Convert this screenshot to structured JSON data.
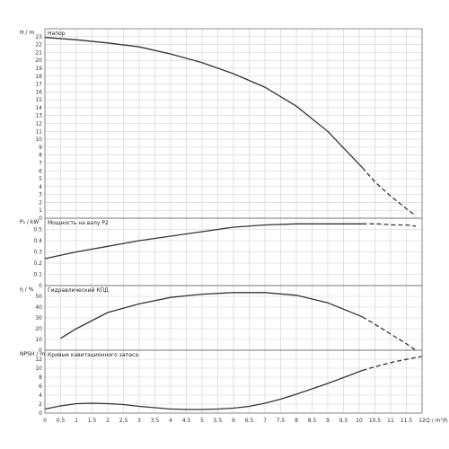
{
  "chart_data": {
    "type": "line",
    "x_axis": {
      "label": "Q / m³/h",
      "ticks": [
        "0",
        "0.5",
        "1",
        "1.5",
        "2",
        "2.5",
        "3",
        "3.5",
        "4",
        "4.5",
        "5",
        "5.5",
        "6",
        "6.5",
        "7",
        "7.5",
        "8",
        "8.5",
        "9",
        "9.5",
        "10",
        "10.5",
        "11",
        "11.5",
        "12"
      ],
      "xlim": [
        0,
        12
      ]
    },
    "grid": true,
    "colors": {
      "curve": "#333333",
      "grid": "#cfcfcf",
      "frame": "#6f6f6f"
    },
    "panels": [
      {
        "id": "head",
        "axis_label": "H / m",
        "title": "Напор",
        "ylim": [
          0,
          24
        ],
        "yticks": [
          "0",
          "1",
          "2",
          "3",
          "4",
          "5",
          "6",
          "7",
          "8",
          "9",
          "10",
          "11",
          "12",
          "13",
          "14",
          "15",
          "16",
          "17",
          "18",
          "19",
          "20",
          "21",
          "22",
          "23"
        ],
        "series_solid": {
          "x": [
            0,
            1,
            2,
            3,
            4,
            5,
            6,
            7,
            8,
            9,
            10.1
          ],
          "y": [
            22.9,
            22.6,
            22.2,
            21.7,
            20.8,
            19.7,
            18.3,
            16.6,
            14.2,
            11.0,
            6.4
          ]
        },
        "series_dashed": {
          "x": [
            10.1,
            10.5,
            11,
            11.5,
            11.8
          ],
          "y": [
            6.4,
            4.6,
            2.8,
            1.2,
            0.3
          ]
        }
      },
      {
        "id": "power",
        "axis_label": "P₂ / kW",
        "title": "Мощность на валу P2",
        "ylim": [
          0,
          0.6
        ],
        "yticks": [
          "0",
          "0.1",
          "0.2",
          "0.3",
          "0.4",
          "0.5"
        ],
        "series_solid": {
          "x": [
            0,
            1,
            2,
            3,
            4,
            5,
            6,
            7,
            8,
            9,
            10.1
          ],
          "y": [
            0.24,
            0.3,
            0.35,
            0.4,
            0.44,
            0.48,
            0.52,
            0.54,
            0.55,
            0.55,
            0.55
          ]
        },
        "series_dashed": {
          "x": [
            10.1,
            10.6,
            11.1,
            11.5,
            11.8
          ],
          "y": [
            0.55,
            0.55,
            0.54,
            0.54,
            0.53
          ]
        }
      },
      {
        "id": "efficiency",
        "axis_label": "η / %",
        "title": "Гидравлический КПД",
        "ylim": [
          0,
          60
        ],
        "yticks": [
          "0",
          "10",
          "20",
          "30",
          "40",
          "50"
        ],
        "series_solid": {
          "x": [
            0.5,
            1,
            2,
            3,
            4,
            5,
            6,
            7,
            8,
            9,
            10.1
          ],
          "y": [
            11,
            20,
            35,
            43,
            49,
            52,
            53.5,
            53.5,
            51,
            44,
            31
          ]
        },
        "series_dashed": {
          "x": [
            10.1,
            10.5,
            11,
            11.5,
            11.8
          ],
          "y": [
            31,
            24,
            15,
            6,
            0
          ]
        }
      },
      {
        "id": "npsh",
        "axis_label": "NPSH / m",
        "title": "Кривые кавитационного запаса",
        "ylim": [
          0,
          14
        ],
        "yticks": [
          "0",
          "2",
          "4",
          "6",
          "8",
          "10",
          "12"
        ],
        "series_solid": {
          "x": [
            0,
            0.5,
            1,
            1.5,
            2,
            2.5,
            3,
            3.5,
            4,
            4.5,
            5,
            5.5,
            6,
            6.5,
            7,
            7.5,
            8,
            8.5,
            9,
            9.5,
            10.1
          ],
          "y": [
            0.9,
            1.6,
            2.1,
            2.2,
            2.1,
            1.9,
            1.5,
            1.2,
            0.9,
            0.8,
            0.8,
            0.9,
            1.1,
            1.5,
            2.2,
            3.1,
            4.2,
            5.4,
            6.6,
            7.9,
            9.5
          ]
        },
        "series_dashed": {
          "x": [
            10.1,
            10.6,
            11.1,
            11.6,
            12
          ],
          "y": [
            9.5,
            10.5,
            11.4,
            12.1,
            12.6
          ]
        }
      }
    ]
  }
}
